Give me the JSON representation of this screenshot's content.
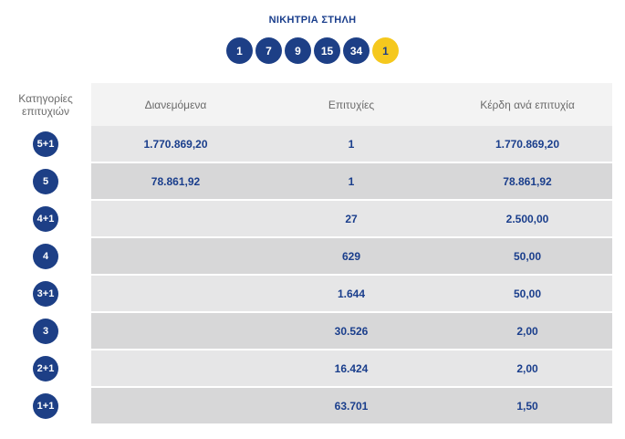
{
  "header": {
    "title": "ΝΙΚΗΤΡΙΑ ΣΤΗΛΗ"
  },
  "winning_numbers": [
    "1",
    "7",
    "9",
    "15",
    "34"
  ],
  "bonus_number": "1",
  "colors": {
    "primary": "#1d3f86",
    "bonus": "#f5c81d",
    "row": "#e6e6e7",
    "row_alt": "#d7d7d8"
  },
  "table": {
    "headers": {
      "category_line1": "Κατηγορίες",
      "category_line2": "επιτυχιών",
      "distributed": "Διανεμόμενα",
      "winners": "Επιτυχίες",
      "prize": "Κέρδη ανά επιτυχία"
    },
    "rows": [
      {
        "category": "5+1",
        "distributed": "1.770.869,20",
        "winners": "1",
        "prize": "1.770.869,20"
      },
      {
        "category": "5",
        "distributed": "78.861,92",
        "winners": "1",
        "prize": "78.861,92"
      },
      {
        "category": "4+1",
        "distributed": "",
        "winners": "27",
        "prize": "2.500,00"
      },
      {
        "category": "4",
        "distributed": "",
        "winners": "629",
        "prize": "50,00"
      },
      {
        "category": "3+1",
        "distributed": "",
        "winners": "1.644",
        "prize": "50,00"
      },
      {
        "category": "3",
        "distributed": "",
        "winners": "30.526",
        "prize": "2,00"
      },
      {
        "category": "2+1",
        "distributed": "",
        "winners": "16.424",
        "prize": "2,00"
      },
      {
        "category": "1+1",
        "distributed": "",
        "winners": "63.701",
        "prize": "1,50"
      }
    ]
  }
}
